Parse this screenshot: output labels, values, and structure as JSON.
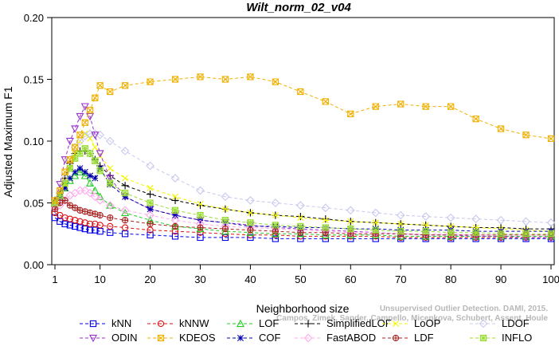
{
  "chart_data": {
    "type": "line",
    "title": "Wilt_norm_02_v04",
    "xlabel": "Neighborhood size",
    "ylabel": "Adjusted Maximum F1",
    "xlim": [
      1,
      100
    ],
    "ylim": [
      0.0,
      0.2
    ],
    "x_ticks": [
      1,
      10,
      20,
      30,
      40,
      50,
      60,
      70,
      80,
      90,
      100
    ],
    "y_ticks": [
      "0.00",
      "0.05",
      "0.10",
      "0.15",
      "0.20"
    ],
    "x": [
      1,
      2,
      3,
      4,
      5,
      6,
      7,
      8,
      9,
      10,
      12,
      15,
      20,
      25,
      30,
      35,
      40,
      45,
      50,
      55,
      60,
      65,
      70,
      75,
      80,
      85,
      90,
      95,
      100
    ],
    "series": [
      {
        "name": "kNN",
        "color": "#0000ee",
        "marker": "square",
        "values": [
          0.038,
          0.035,
          0.033,
          0.032,
          0.031,
          0.03,
          0.029,
          0.028,
          0.028,
          0.027,
          0.026,
          0.025,
          0.024,
          0.023,
          0.022,
          0.022,
          0.022,
          0.021,
          0.021,
          0.021,
          0.021,
          0.021,
          0.021,
          0.021,
          0.021,
          0.021,
          0.021,
          0.021,
          0.021
        ]
      },
      {
        "name": "kNNW",
        "color": "#dd1111",
        "marker": "circle",
        "values": [
          0.042,
          0.04,
          0.038,
          0.037,
          0.036,
          0.035,
          0.034,
          0.033,
          0.033,
          0.032,
          0.031,
          0.03,
          0.028,
          0.027,
          0.026,
          0.025,
          0.024,
          0.024,
          0.023,
          0.023,
          0.023,
          0.023,
          0.022,
          0.022,
          0.022,
          0.022,
          0.022,
          0.022,
          0.022
        ]
      },
      {
        "name": "LOF",
        "color": "#22cc22",
        "marker": "triangle",
        "values": [
          0.05,
          0.055,
          0.062,
          0.068,
          0.072,
          0.075,
          0.072,
          0.066,
          0.06,
          0.055,
          0.048,
          0.042,
          0.036,
          0.031,
          0.029,
          0.027,
          0.026,
          0.025,
          0.025,
          0.024,
          0.024,
          0.024,
          0.023,
          0.023,
          0.023,
          0.023,
          0.023,
          0.023,
          0.023
        ]
      },
      {
        "name": "SimplifiedLOF",
        "color": "#000000",
        "marker": "plus",
        "values": [
          0.052,
          0.058,
          0.07,
          0.082,
          0.09,
          0.092,
          0.092,
          0.09,
          0.085,
          0.08,
          0.072,
          0.064,
          0.057,
          0.052,
          0.048,
          0.045,
          0.042,
          0.04,
          0.039,
          0.037,
          0.035,
          0.034,
          0.033,
          0.032,
          0.031,
          0.03,
          0.03,
          0.029,
          0.029
        ]
      },
      {
        "name": "LoOP",
        "color": "#f5f500",
        "marker": "x",
        "values": [
          0.048,
          0.055,
          0.065,
          0.078,
          0.09,
          0.1,
          0.106,
          0.102,
          0.095,
          0.088,
          0.078,
          0.07,
          0.062,
          0.055,
          0.049,
          0.045,
          0.042,
          0.04,
          0.038,
          0.036,
          0.035,
          0.034,
          0.033,
          0.032,
          0.031,
          0.03,
          0.029,
          0.028,
          0.027
        ]
      },
      {
        "name": "LDOF",
        "color": "#c8c8f0",
        "marker": "diamond",
        "values": [
          0.045,
          0.055,
          0.07,
          0.085,
          0.095,
          0.1,
          0.104,
          0.106,
          0.106,
          0.105,
          0.1,
          0.092,
          0.08,
          0.07,
          0.06,
          0.055,
          0.052,
          0.05,
          0.048,
          0.046,
          0.044,
          0.042,
          0.04,
          0.039,
          0.038,
          0.037,
          0.036,
          0.035,
          0.034
        ]
      },
      {
        "name": "ODIN",
        "color": "#9933cc",
        "marker": "triangle-down",
        "values": [
          0.05,
          0.065,
          0.085,
          0.1,
          0.11,
          0.12,
          0.128,
          0.12,
          0.105,
          0.09,
          0.07,
          0.055,
          0.045,
          0.04,
          0.036,
          0.034,
          0.032,
          0.03,
          0.029,
          0.028,
          0.027,
          0.026,
          0.025,
          0.024,
          0.024,
          0.023,
          0.023,
          0.022,
          0.022
        ]
      },
      {
        "name": "KDEOS",
        "color": "#f0b000",
        "marker": "square-x",
        "values": [
          0.052,
          0.06,
          0.075,
          0.085,
          0.095,
          0.105,
          0.115,
          0.125,
          0.135,
          0.145,
          0.14,
          0.145,
          0.148,
          0.15,
          0.152,
          0.15,
          0.152,
          0.148,
          0.14,
          0.132,
          0.122,
          0.128,
          0.13,
          0.128,
          0.128,
          0.118,
          0.11,
          0.105,
          0.102
        ]
      },
      {
        "name": "COF",
        "color": "#0000aa",
        "marker": "asterisk",
        "values": [
          0.05,
          0.055,
          0.062,
          0.07,
          0.075,
          0.078,
          0.075,
          0.072,
          0.07,
          0.078,
          0.065,
          0.055,
          0.045,
          0.04,
          0.036,
          0.034,
          0.031,
          0.031,
          0.03,
          0.03,
          0.029,
          0.029,
          0.028,
          0.028,
          0.028,
          0.027,
          0.027,
          0.027,
          0.027
        ]
      },
      {
        "name": "FastABOD",
        "color": "#ffaaee",
        "marker": "diamond",
        "values": [
          0.046,
          0.048,
          0.052,
          0.056,
          0.058,
          0.06,
          0.06,
          0.058,
          0.055,
          0.052,
          0.048,
          0.044,
          0.04,
          0.036,
          0.033,
          0.031,
          0.03,
          0.029,
          0.028,
          0.027,
          0.026,
          0.026,
          0.025,
          0.025,
          0.025,
          0.024,
          0.024,
          0.024,
          0.024
        ]
      },
      {
        "name": "LDF",
        "color": "#aa2222",
        "marker": "circle-plus",
        "values": [
          0.045,
          0.05,
          0.052,
          0.048,
          0.046,
          0.044,
          0.043,
          0.042,
          0.041,
          0.04,
          0.038,
          0.036,
          0.033,
          0.031,
          0.03,
          0.029,
          0.028,
          0.027,
          0.026,
          0.026,
          0.025,
          0.025,
          0.025,
          0.024,
          0.024,
          0.024,
          0.024,
          0.024,
          0.024
        ]
      },
      {
        "name": "INFLO",
        "color": "#99dd33",
        "marker": "square-star",
        "values": [
          0.05,
          0.056,
          0.066,
          0.078,
          0.086,
          0.09,
          0.094,
          0.09,
          0.084,
          0.076,
          0.066,
          0.058,
          0.05,
          0.044,
          0.04,
          0.036,
          0.034,
          0.032,
          0.031,
          0.03,
          0.029,
          0.028,
          0.027,
          0.027,
          0.026,
          0.026,
          0.025,
          0.025,
          0.025
        ]
      }
    ],
    "legend_placement": "bottom",
    "grid": false
  },
  "credit": "Campos, Zimek, Sander, Campello, Micenkova, Schubert, Assent, Houle",
  "credit_top": "Unsupervised Outlier Detection. DAMI, 2015."
}
